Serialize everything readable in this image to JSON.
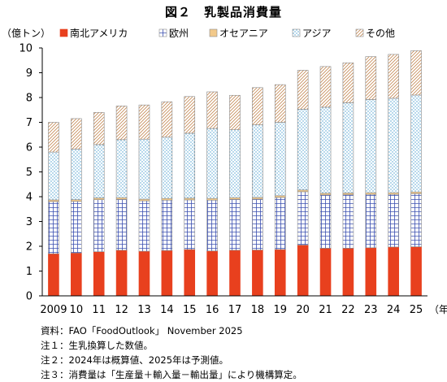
{
  "title": "図２　乳製品消費量",
  "chart_data": {
    "type": "bar",
    "stacked": true,
    "title": "図２　乳製品消費量",
    "ylabel": "（億トン）",
    "xunit": "（年）",
    "ylim": [
      0,
      10
    ],
    "yticks": [
      "0",
      "1",
      "2",
      "3",
      "4",
      "5",
      "6",
      "7",
      "8",
      "9",
      "10"
    ],
    "categories": [
      "2009",
      "10",
      "11",
      "12",
      "13",
      "14",
      "15",
      "16",
      "17",
      "18",
      "19",
      "20",
      "21",
      "22",
      "23",
      "24",
      "25"
    ],
    "legend_position": "top",
    "series": [
      {
        "name": "南北アメリカ",
        "color": "#e8401e",
        "pattern": "solid",
        "values": [
          1.7,
          1.73,
          1.78,
          1.84,
          1.8,
          1.83,
          1.87,
          1.81,
          1.84,
          1.85,
          1.87,
          2.05,
          1.92,
          1.92,
          1.94,
          1.97,
          1.98
        ]
      },
      {
        "name": "欧州",
        "color": "#3a4fb0",
        "pattern": "grid",
        "values": [
          2.1,
          2.08,
          2.1,
          2.05,
          2.03,
          2.03,
          2.0,
          2.05,
          2.05,
          2.05,
          2.1,
          2.15,
          2.15,
          2.16,
          2.15,
          2.12,
          2.14
        ]
      },
      {
        "name": "オセアニア",
        "color": "#e0a040",
        "pattern": "solid-light",
        "values": [
          0.07,
          0.07,
          0.07,
          0.07,
          0.07,
          0.07,
          0.07,
          0.07,
          0.07,
          0.07,
          0.07,
          0.07,
          0.07,
          0.07,
          0.07,
          0.07,
          0.07
        ]
      },
      {
        "name": "アジア",
        "color": "#6ab0d8",
        "pattern": "dots",
        "values": [
          1.93,
          2.04,
          2.15,
          2.34,
          2.42,
          2.47,
          2.62,
          2.82,
          2.74,
          2.93,
          2.96,
          3.26,
          3.47,
          3.64,
          3.76,
          3.81,
          3.91
        ]
      },
      {
        "name": "その他",
        "color": "#c58a55",
        "pattern": "hatch",
        "values": [
          1.2,
          1.23,
          1.3,
          1.36,
          1.38,
          1.43,
          1.48,
          1.48,
          1.39,
          1.5,
          1.52,
          1.57,
          1.64,
          1.61,
          1.73,
          1.77,
          1.79
        ]
      }
    ]
  },
  "notes": [
    "資料：FAO「FoodOutlook」 November 2025",
    "注１：生乳換算した数値。",
    "注２：2024年は概算値、2025年は予測値。",
    "注３：消費量は「生産量＋輸入量－輸出量」により機構算定。"
  ]
}
